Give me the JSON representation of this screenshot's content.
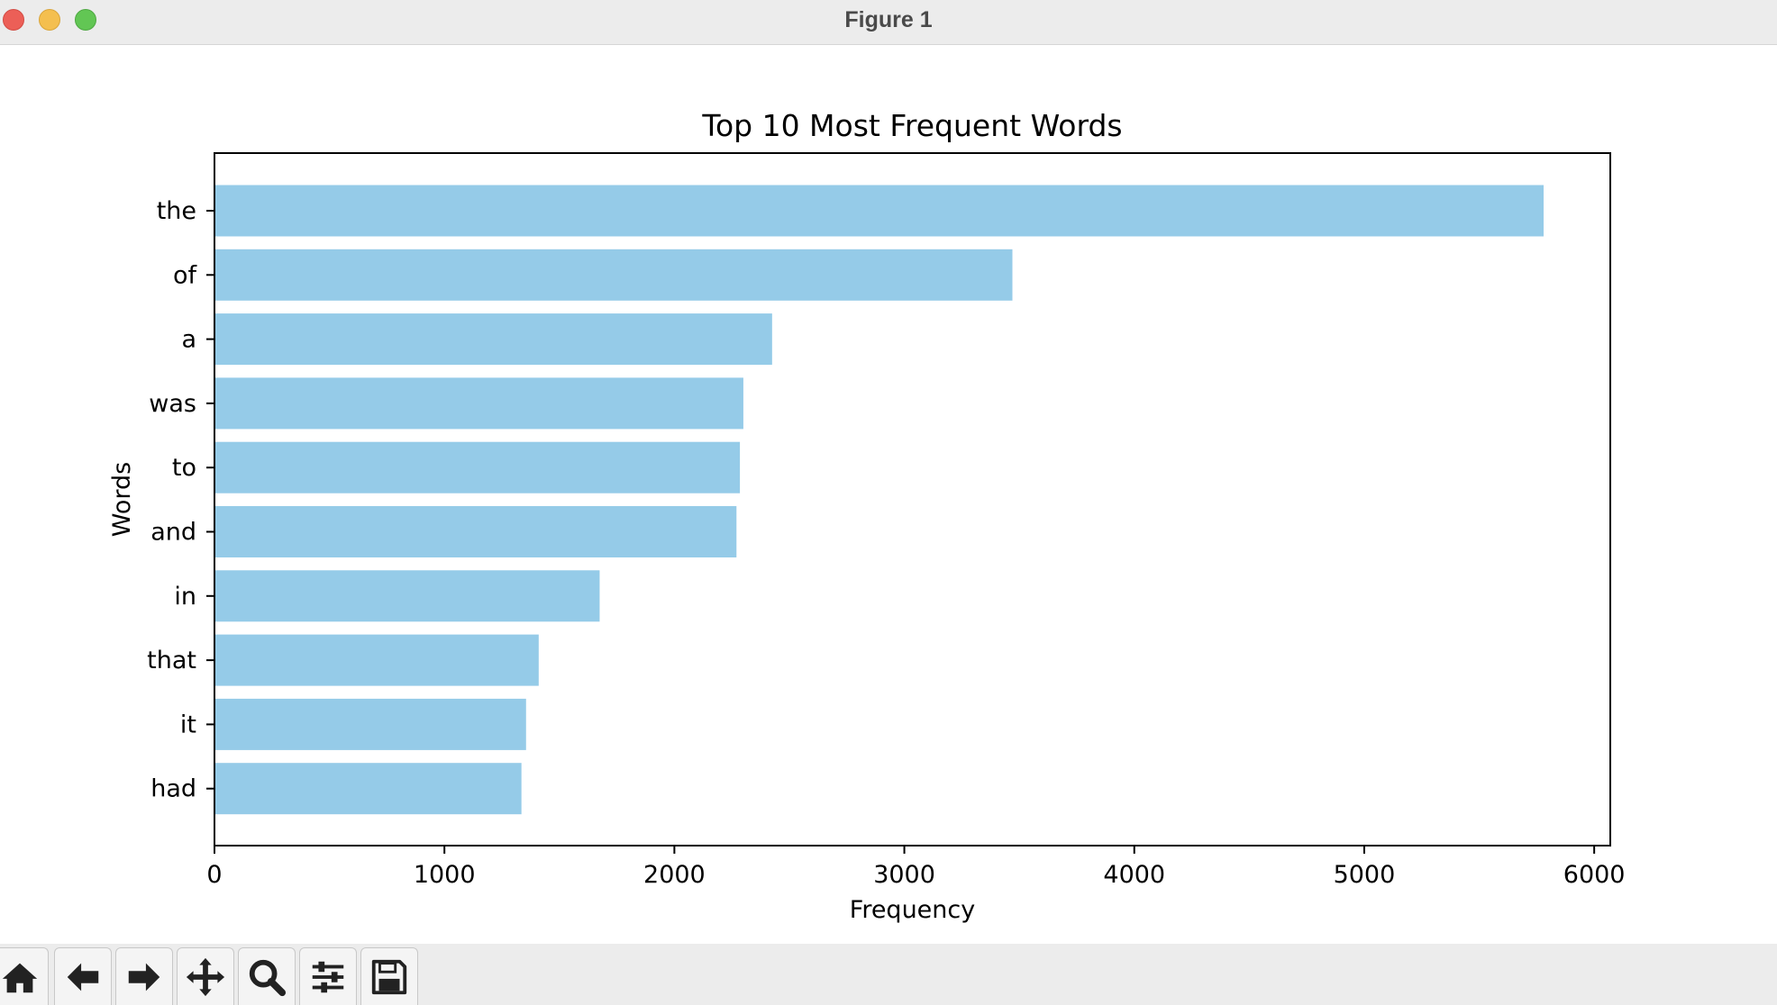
{
  "window": {
    "title": "Figure 1"
  },
  "toolbar": {
    "buttons": [
      {
        "name": "home-button",
        "icon": "home-icon"
      },
      {
        "name": "back-button",
        "icon": "arrow-left-icon"
      },
      {
        "name": "forward-button",
        "icon": "arrow-right-icon"
      },
      {
        "name": "pan-button",
        "icon": "move-icon"
      },
      {
        "name": "zoom-button",
        "icon": "search-icon"
      },
      {
        "name": "configure-subplots-button",
        "icon": "sliders-icon"
      },
      {
        "name": "save-button",
        "icon": "floppy-disk-icon"
      }
    ]
  },
  "chart_data": {
    "type": "bar",
    "orientation": "horizontal",
    "title": "Top 10 Most Frequent Words",
    "xlabel": "Frequency",
    "ylabel": "Words",
    "categories": [
      "the",
      "of",
      "a",
      "was",
      "to",
      "and",
      "in",
      "that",
      "it",
      "had"
    ],
    "values": [
      5780,
      3470,
      2425,
      2300,
      2285,
      2270,
      1675,
      1410,
      1355,
      1335
    ],
    "xlim": [
      0,
      6070
    ],
    "xticks": [
      0,
      1000,
      2000,
      3000,
      4000,
      5000,
      6000
    ],
    "bar_color": "#95cbe8",
    "grid": false,
    "legend": "none"
  }
}
